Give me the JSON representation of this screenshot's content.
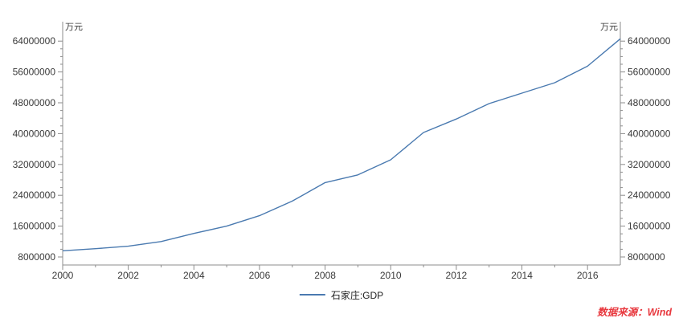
{
  "page": {
    "background": "#ffffff"
  },
  "chart": {
    "unit_left": "万元",
    "unit_right": "万元",
    "source_note": "数据来源：Wind",
    "source_color": "#e8393f",
    "axis_color": "#8c8c8c",
    "label_color": "#3a3a3a"
  },
  "chart_data": {
    "type": "line",
    "title": "",
    "xlabel": "",
    "ylabel": "万元",
    "legend_position": "bottom-center",
    "grid": false,
    "x_range": [
      2000,
      2017
    ],
    "y_range": [
      8000000,
      64000000
    ],
    "y_major_step": 8000000,
    "y_minor_step": 2000000,
    "x_major_step": 2,
    "x_minor_step": 1,
    "x_major_tick_labels": [
      "2000",
      "2002",
      "2004",
      "2006",
      "2008",
      "2010",
      "2012",
      "2014",
      "2016"
    ],
    "y_major_tick_labels": [
      "8000000",
      "16000000",
      "24000000",
      "32000000",
      "40000000",
      "48000000",
      "56000000",
      "64000000"
    ],
    "series": [
      {
        "name": "石家庄:GDP",
        "color": "#4a7ab0",
        "x": [
          2000,
          2001,
          2002,
          2003,
          2004,
          2005,
          2006,
          2007,
          2008,
          2009,
          2010,
          2011,
          2012,
          2013,
          2014,
          2015,
          2016,
          2017
        ],
        "values": [
          9600000,
          10150000,
          10800000,
          12000000,
          14100000,
          16000000,
          18700000,
          22500000,
          27300000,
          29300000,
          33200000,
          40300000,
          43800000,
          47800000,
          50500000,
          53200000,
          57500000,
          64600000
        ]
      }
    ]
  }
}
